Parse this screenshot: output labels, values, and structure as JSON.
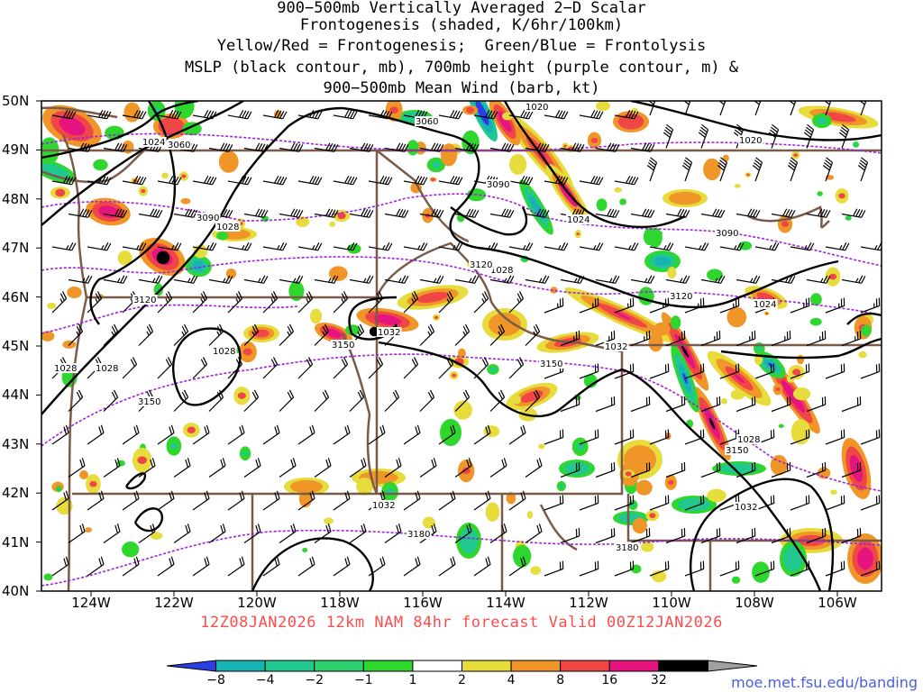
{
  "title": {
    "line1": "900−500mb Vertically Averaged 2−D Scalar",
    "line2": "Frontogenesis (shaded, K/6hr/100km)",
    "line3": "Yellow/Red = Frontogenesis;  Green/Blue = Frontolysis",
    "line4": "MSLP (black contour, mb), 700mb height (purple contour, m) &",
    "line5": "900−500mb Mean Wind (barb, kt)"
  },
  "footer": "12Z08JAN2026 12km NAM 84hr forecast Valid 00Z12JAN2026",
  "credit": "moe.met.fsu.edu/banding",
  "lat_labels": [
    "50N",
    "49N",
    "48N",
    "47N",
    "46N",
    "45N",
    "44N",
    "43N",
    "42N",
    "41N",
    "40N"
  ],
  "lon_labels": [
    "124W",
    "122W",
    "120W",
    "118W",
    "116W",
    "114W",
    "112W",
    "110W",
    "108W",
    "106W"
  ],
  "colorbar": {
    "labels": [
      "−8",
      "−4",
      "−2",
      "−1",
      "1",
      "2",
      "4",
      "8",
      "16",
      "32"
    ],
    "colors": [
      "#2a3ee6",
      "#18b4b4",
      "#20c890",
      "#30d070",
      "#2ed62e",
      "#ffffff",
      "#e6dc3c",
      "#f09628",
      "#f04646",
      "#e6147e",
      "#000000",
      "#a0a0a0"
    ]
  },
  "mslp_labels": [
    "1020",
    "1024",
    "1028",
    "1028",
    "1028",
    "1028",
    "1032",
    "1032",
    "1032",
    "1032",
    "1028",
    "1024",
    "1020",
    "1024",
    "1028"
  ],
  "height_labels": [
    "3060",
    "3060",
    "3090",
    "3090",
    "3090",
    "3120",
    "3120",
    "3120",
    "3150",
    "3150",
    "3150",
    "3150",
    "3180",
    "3180"
  ],
  "colors": {
    "mslp": "#000000",
    "height": "#a020e0",
    "borders": "#7a5a48",
    "footer": "#ff4c4c",
    "credit": "#4a5fe0"
  }
}
